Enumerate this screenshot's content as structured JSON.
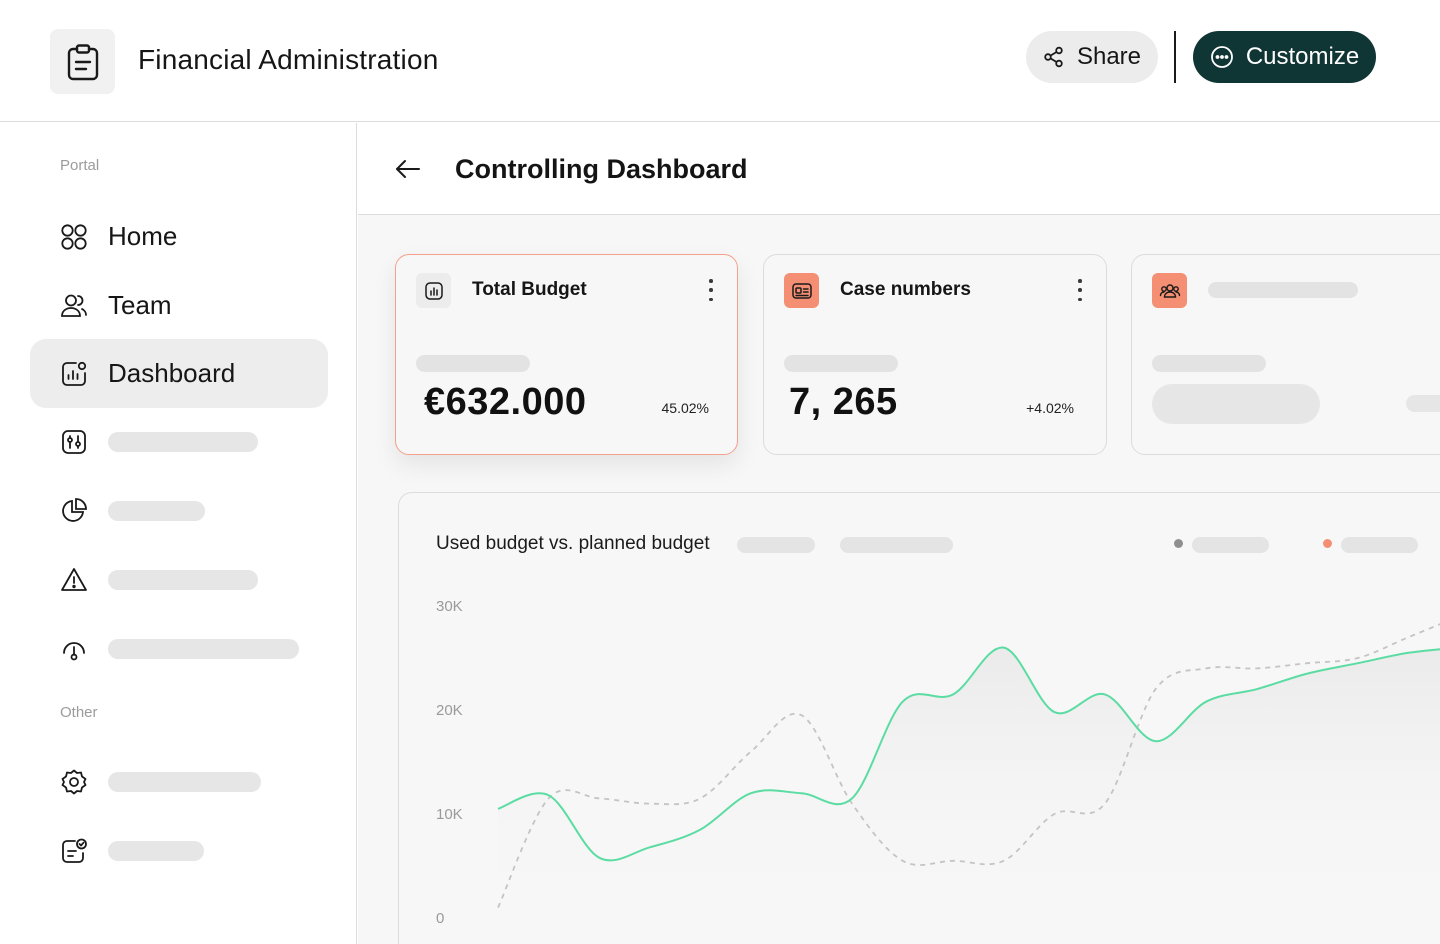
{
  "header": {
    "title": "Financial Administration",
    "share_label": "Share",
    "customize_label": "Customize"
  },
  "sidebar": {
    "section_portal": "Portal",
    "section_other": "Other",
    "items": [
      {
        "label": "Home",
        "icon": "grid-icon"
      },
      {
        "label": "Team",
        "icon": "users-icon"
      },
      {
        "label": "Dashboard",
        "icon": "chart-icon",
        "active": true
      }
    ]
  },
  "page": {
    "title": "Controlling Dashboard"
  },
  "cards": [
    {
      "title": "Total Budget",
      "value": "€632.000",
      "delta": "45.02%",
      "icon": "bar-chart-icon"
    },
    {
      "title": "Case numbers",
      "value": "7, 265",
      "delta": "+4.02%",
      "icon": "id-card-icon"
    },
    {
      "title": "",
      "icon": "group-icon"
    }
  ],
  "chart_data": {
    "type": "line",
    "title": "Used budget vs. planned budget",
    "yticks": [
      "30K",
      "20K",
      "10K",
      "0"
    ],
    "ylim": [
      0,
      30000
    ],
    "grid": false,
    "legend": "top-right",
    "x": [
      0,
      1,
      2,
      3,
      4,
      5,
      6,
      7,
      8,
      9,
      10,
      11,
      12,
      13,
      14,
      15,
      16,
      17,
      18,
      19
    ],
    "series": [
      {
        "color": "#5bdca2",
        "style": "solid",
        "values": [
          10500,
          11800,
          5800,
          6800,
          8500,
          12000,
          12000,
          11500,
          20800,
          21500,
          26000,
          19800,
          21500,
          17000,
          20800,
          22000,
          23500,
          24500,
          25500,
          26000
        ]
      },
      {
        "color": "#c4c4c4",
        "style": "dashed",
        "values": [
          1000,
          11500,
          11500,
          11000,
          11500,
          16000,
          19500,
          11000,
          5500,
          5500,
          5500,
          10000,
          11000,
          22000,
          24000,
          24000,
          24500,
          25000,
          27000,
          29000
        ]
      }
    ]
  },
  "colors": {
    "accent": "#f58f74",
    "primary_dark": "#0f3534",
    "used_line": "#5bdca2",
    "planned_line": "#c4c4c4"
  }
}
